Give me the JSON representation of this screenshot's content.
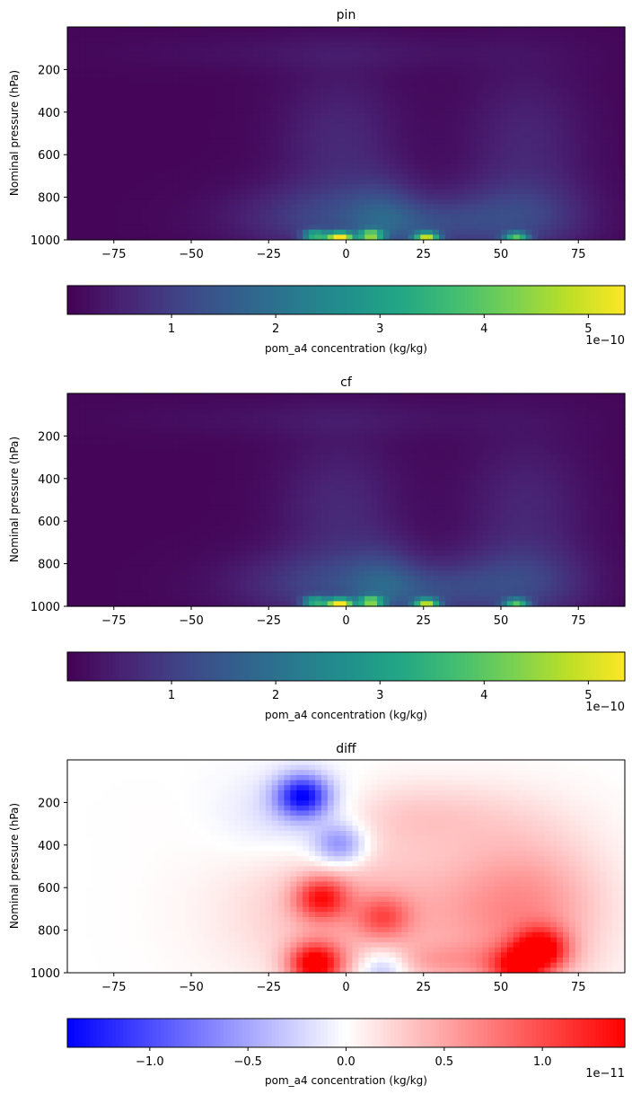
{
  "chart_data": [
    {
      "type": "heatmap",
      "title": "pin",
      "ylabel": "Nominal pressure (hPa)",
      "xticks": [
        "−75",
        "−50",
        "−25",
        "0",
        "25",
        "50",
        "75"
      ],
      "yticks": [
        "200",
        "400",
        "600",
        "800",
        "1000"
      ],
      "xlim": [
        -90,
        90
      ],
      "ylim": [
        1000,
        0
      ],
      "colormap": "viridis",
      "colorbar": {
        "label": "pom_a4 concentration (kg/kg)",
        "ticks": [
          "1",
          "2",
          "3",
          "4",
          "5"
        ],
        "range": [
          0,
          5.35
        ],
        "offset": "1e−10"
      },
      "hotspots": [
        {
          "lat": -2,
          "pressure": 990,
          "value": 5.3
        },
        {
          "lat": 26,
          "pressure": 990,
          "value": 4.0
        },
        {
          "lat": 8,
          "pressure": 980,
          "value": 3.6
        },
        {
          "lat": 55,
          "pressure": 990,
          "value": 3.0
        },
        {
          "lat": -10,
          "pressure": 980,
          "value": 2.9
        }
      ]
    },
    {
      "type": "heatmap",
      "title": "cf",
      "ylabel": "Nominal pressure (hPa)",
      "xticks": [
        "−75",
        "−50",
        "−25",
        "0",
        "25",
        "50",
        "75"
      ],
      "yticks": [
        "200",
        "400",
        "600",
        "800",
        "1000"
      ],
      "xlim": [
        -90,
        90
      ],
      "ylim": [
        1000,
        0
      ],
      "colormap": "viridis",
      "colorbar": {
        "label": "pom_a4 concentration (kg/kg)",
        "ticks": [
          "1",
          "2",
          "3",
          "4",
          "5"
        ],
        "range": [
          0,
          5.35
        ],
        "offset": "1e−10"
      },
      "hotspots": [
        {
          "lat": -2,
          "pressure": 990,
          "value": 5.2
        },
        {
          "lat": 26,
          "pressure": 990,
          "value": 3.9
        },
        {
          "lat": 8,
          "pressure": 980,
          "value": 3.5
        },
        {
          "lat": 55,
          "pressure": 990,
          "value": 3.0
        },
        {
          "lat": -10,
          "pressure": 980,
          "value": 2.8
        }
      ]
    },
    {
      "type": "heatmap",
      "title": "diff",
      "ylabel": "Nominal pressure (hPa)",
      "xticks": [
        "−75",
        "−50",
        "−25",
        "0",
        "25",
        "50",
        "75"
      ],
      "yticks": [
        "200",
        "400",
        "600",
        "800",
        "1000"
      ],
      "xlim": [
        -90,
        90
      ],
      "ylim": [
        1000,
        0
      ],
      "colormap": "bwr",
      "colorbar": {
        "label": "pom_a4 concentration (kg/kg)",
        "ticks": [
          "−1.0",
          "−0.5",
          "0.0",
          "0.5",
          "1.0"
        ],
        "range": [
          -1.42,
          1.42
        ],
        "offset": "1e−11"
      },
      "hotspots": [
        {
          "lat": -14,
          "pressure": 170,
          "value": -1.3
        },
        {
          "lat": -2,
          "pressure": 400,
          "value": -0.7
        },
        {
          "lat": -10,
          "pressure": 960,
          "value": 1.4
        },
        {
          "lat": -8,
          "pressure": 650,
          "value": 1.0
        },
        {
          "lat": 63,
          "pressure": 890,
          "value": 1.2
        },
        {
          "lat": 12,
          "pressure": 740,
          "value": 0.6
        },
        {
          "lat": 55,
          "pressure": 980,
          "value": 0.9
        },
        {
          "lat": 12,
          "pressure": 980,
          "value": -0.6
        }
      ]
    }
  ]
}
